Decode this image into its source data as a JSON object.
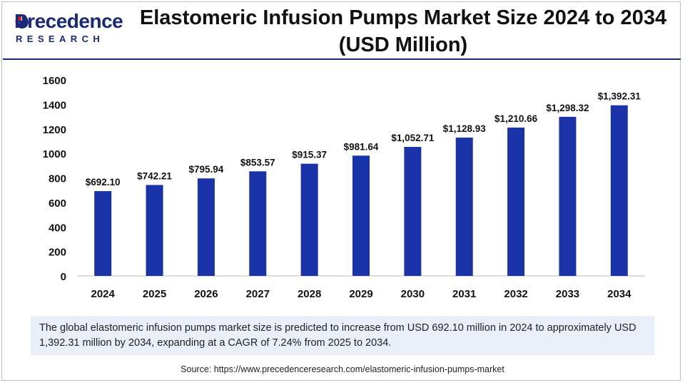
{
  "brand": {
    "name": "Precedence",
    "sub": "RESEARCH"
  },
  "chart_data": {
    "type": "bar",
    "title": "Elastomeric Infusion Pumps Market Size 2024 to 2034 (USD Million)",
    "categories": [
      "2024",
      "2025",
      "2026",
      "2027",
      "2028",
      "2029",
      "2030",
      "2031",
      "2032",
      "2033",
      "2034"
    ],
    "values": [
      692.1,
      742.21,
      795.94,
      853.57,
      915.37,
      981.64,
      1052.71,
      1128.93,
      1210.66,
      1298.32,
      1392.31
    ],
    "data_labels": [
      "$692.10",
      "$742.21",
      "$795.94",
      "$853.57",
      "$915.37",
      "$981.64",
      "$1,052.71",
      "$1,128.93",
      "$1,210.66",
      "$1,298.32",
      "$1,392.31"
    ],
    "yticks": [
      "0",
      "200",
      "400",
      "600",
      "800",
      "1000",
      "1200",
      "1400",
      "1600"
    ],
    "ylim": [
      0,
      1600
    ],
    "bar_color": "#1a33a8",
    "grid": false
  },
  "summary": "The global elastomeric infusion pumps market size is predicted to increase from USD 692.10 million in 2024 to approximately USD 1,392.31 million by 2034, expanding at a CAGR of 7.24% from 2025 to 2034.",
  "source": "Source: https://www.precedenceresearch.com/elastomeric-infusion-pumps-market"
}
